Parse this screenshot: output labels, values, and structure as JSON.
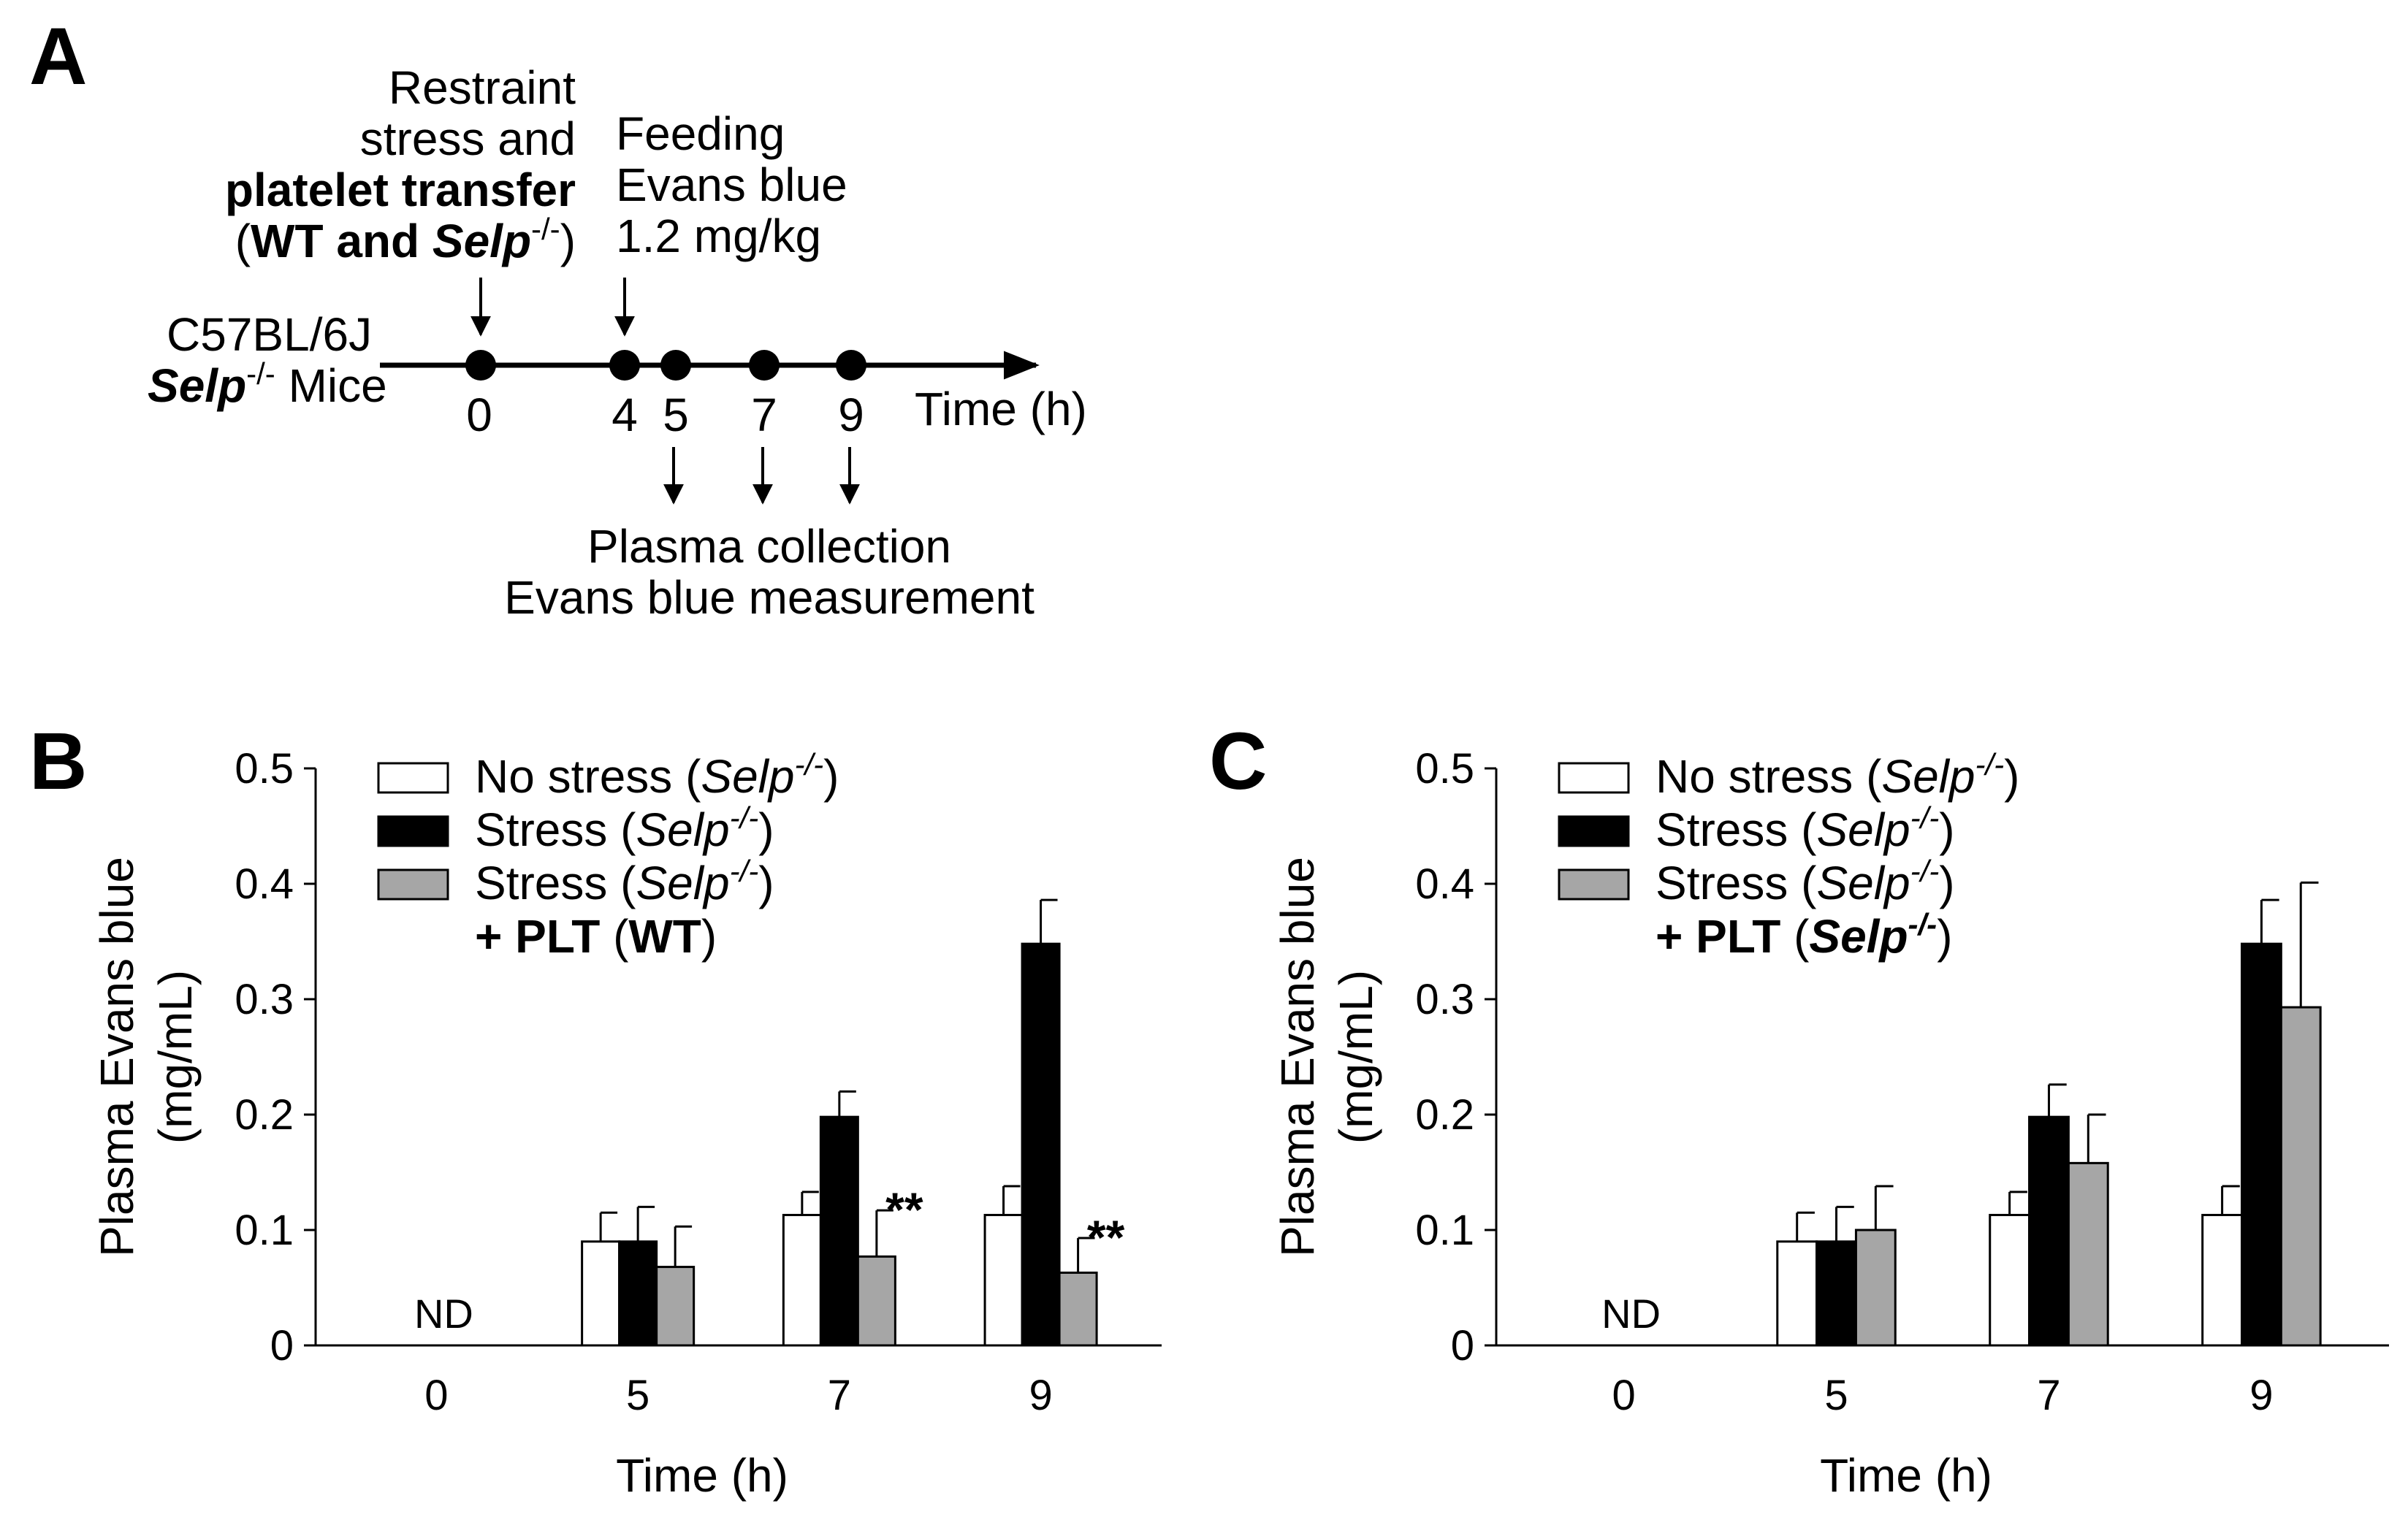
{
  "panelA": {
    "letter": "A",
    "event0": {
      "line1": "Restraint",
      "line2": "stress and",
      "line3": "platelet transfer",
      "line4_open": "(",
      "line4_wt": "WT and ",
      "line4_selp": "Selp",
      "line4_sup": "-/-",
      "line4_close": ")"
    },
    "event4": {
      "line1": "Feeding",
      "line2": "Evans blue",
      "line3": "1.2 mg/kg"
    },
    "mice": {
      "line1": "C57BL/6J",
      "selp": "Selp",
      "sup": "-/-",
      "rest": " Mice"
    },
    "ticks": [
      "0",
      "4",
      "5",
      "7",
      "9"
    ],
    "axis_label": "Time (h)",
    "collection": {
      "line1": "Plasma collection",
      "line2": "Evans blue measurement"
    }
  },
  "chart_data": [
    {
      "panel": "B",
      "type": "bar",
      "title": "",
      "xlabel": "Time (h)",
      "ylabel_line1": "Plasma Evans blue",
      "ylabel_line2": "(mg/mL)",
      "ylim": [
        0,
        0.5
      ],
      "yticks": [
        "0",
        "0.1",
        "0.2",
        "0.3",
        "0.4",
        "0.5"
      ],
      "categories": [
        "0",
        "5",
        "7",
        "9"
      ],
      "nd_label": "ND",
      "series": [
        {
          "name": "No stress (Selp-/-)",
          "color": "#ffffff",
          "values": [
            null,
            0.09,
            0.113,
            0.113
          ],
          "errors": [
            null,
            0.025,
            0.02,
            0.025
          ]
        },
        {
          "name": "Stress (Selp-/-)",
          "color": "#000000",
          "values": [
            null,
            0.09,
            0.198,
            0.348
          ],
          "errors": [
            null,
            0.03,
            0.022,
            0.038
          ]
        },
        {
          "name": "Stress (Selp-/-) + PLT (WT)",
          "color": "#a6a6a6",
          "values": [
            null,
            0.068,
            0.077,
            0.063
          ],
          "errors": [
            null,
            0.035,
            0.04,
            0.03
          ]
        }
      ],
      "legend": [
        {
          "t1": "No stress (",
          "i": "Selp",
          "sup": "-/-",
          "t2": ")"
        },
        {
          "t1": "Stress (",
          "i": "Selp",
          "sup": "-/-",
          "t2": ")"
        },
        {
          "t1": "Stress (",
          "i": "Selp",
          "sup": "-/-",
          "t2": ")",
          "l2a": "+ ",
          "l2b": "PLT",
          "l2c": " (",
          "l2d": "WT",
          "l2e": ")"
        }
      ],
      "annotations": [
        {
          "text": "**",
          "category": "7"
        },
        {
          "text": "**",
          "category": "9"
        }
      ]
    },
    {
      "panel": "C",
      "type": "bar",
      "title": "",
      "xlabel": "Time (h)",
      "ylabel_line1": "Plasma Evans blue",
      "ylabel_line2": "(mg/mL)",
      "ylim": [
        0,
        0.5
      ],
      "yticks": [
        "0",
        "0.1",
        "0.2",
        "0.3",
        "0.4",
        "0.5"
      ],
      "categories": [
        "0",
        "5",
        "7",
        "9"
      ],
      "nd_label": "ND",
      "series": [
        {
          "name": "No stress (Selp-/-)",
          "color": "#ffffff",
          "values": [
            null,
            0.09,
            0.113,
            0.113
          ],
          "errors": [
            null,
            0.025,
            0.02,
            0.025
          ]
        },
        {
          "name": "Stress (Selp-/-)",
          "color": "#000000",
          "values": [
            null,
            0.09,
            0.198,
            0.348
          ],
          "errors": [
            null,
            0.03,
            0.028,
            0.038
          ]
        },
        {
          "name": "Stress (Selp-/-) + PLT (Selp-/-)",
          "color": "#a6a6a6",
          "values": [
            null,
            0.1,
            0.158,
            0.293
          ],
          "errors": [
            null,
            0.038,
            0.042,
            0.108
          ]
        }
      ],
      "legend": [
        {
          "t1": "No stress (",
          "i": "Selp",
          "sup": "-/-",
          "t2": ")"
        },
        {
          "t1": "Stress (",
          "i": "Selp",
          "sup": "-/-",
          "t2": ")"
        },
        {
          "t1": "Stress (",
          "i": "Selp",
          "sup": "-/-",
          "t2": ")",
          "l2a": "+ ",
          "l2b": "PLT",
          "l2c": " (",
          "l2d": "Selp",
          "l2sup": "-/-",
          "l2e": ")"
        }
      ],
      "annotations": []
    }
  ]
}
